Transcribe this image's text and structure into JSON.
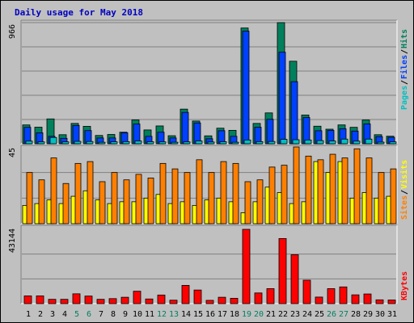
{
  "chart_data": [
    {
      "type": "bar",
      "title": "Daily usage for May 2018",
      "ylabel_max": "966",
      "legend": [
        "Pages",
        "Files",
        "Hits"
      ],
      "categories": [
        "1",
        "2",
        "3",
        "4",
        "5",
        "6",
        "7",
        "8",
        "9",
        "10",
        "11",
        "12",
        "13",
        "14",
        "15",
        "16",
        "17",
        "18",
        "19",
        "20",
        "21",
        "22",
        "23",
        "24",
        "25",
        "26",
        "27",
        "28",
        "29",
        "30",
        "31"
      ],
      "weekend_days": [
        "5",
        "6",
        "12",
        "13",
        "19",
        "20",
        "26",
        "27"
      ],
      "series": [
        {
          "name": "Hits",
          "color": "#00805c",
          "values": [
            150,
            132,
            198,
            72,
            162,
            139,
            66,
            74,
            92,
            190,
            110,
            142,
            64,
            276,
            181,
            63,
            124,
            107,
            923,
            162,
            246,
            966,
            658,
            229,
            140,
            116,
            150,
            131,
            189,
            72,
            60
          ]
        },
        {
          "name": "Files",
          "color": "#0040ff",
          "values": [
            131,
            87,
            59,
            43,
            146,
            105,
            46,
            46,
            87,
            157,
            59,
            92,
            46,
            250,
            166,
            40,
            104,
            59,
            898,
            132,
            195,
            730,
            495,
            209,
            104,
            106,
            119,
            101,
            158,
            57,
            51
          ]
        },
        {
          "name": "Pages",
          "color": "#00c0c0",
          "values": [
            21,
            15,
            50,
            15,
            19,
            18,
            12,
            16,
            17,
            22,
            16,
            15,
            12,
            15,
            22,
            14,
            16,
            12,
            30,
            17,
            18,
            35,
            32,
            30,
            25,
            22,
            37,
            21,
            37,
            13,
            15
          ]
        }
      ]
    },
    {
      "type": "bar",
      "ylabel_max": "45",
      "legend": [
        "Sites",
        "Visits"
      ],
      "series": [
        {
          "name": "Visits",
          "color": "#ff8000",
          "values": [
            28,
            24,
            36,
            22,
            33,
            34,
            23,
            28,
            24,
            27,
            25,
            33,
            30,
            28,
            35,
            28,
            34,
            33,
            23,
            24,
            31,
            32,
            42,
            37,
            35,
            38,
            36,
            41,
            36,
            28,
            30
          ]
        },
        {
          "name": "Sites",
          "color": "#ffff00",
          "values": [
            10,
            11,
            13,
            11,
            15,
            18,
            13,
            11,
            12,
            12,
            14,
            16,
            11,
            12,
            10,
            13,
            14,
            12,
            6,
            12,
            20,
            17,
            11,
            12,
            34,
            28,
            34,
            14,
            17,
            14,
            15
          ]
        }
      ]
    },
    {
      "type": "bar",
      "ylabel_max": "43144",
      "legend": [
        "KBytes"
      ],
      "series": [
        {
          "name": "KBytes",
          "color": "#ff0000",
          "values": [
            4500,
            4500,
            2500,
            2500,
            5700,
            4400,
            2500,
            2900,
            3700,
            7200,
            2700,
            5000,
            2000,
            10600,
            7900,
            1900,
            3700,
            3100,
            43144,
            6200,
            8700,
            37800,
            28400,
            13600,
            3800,
            8700,
            9700,
            5100,
            5600,
            2200,
            2100
          ]
        }
      ]
    }
  ]
}
